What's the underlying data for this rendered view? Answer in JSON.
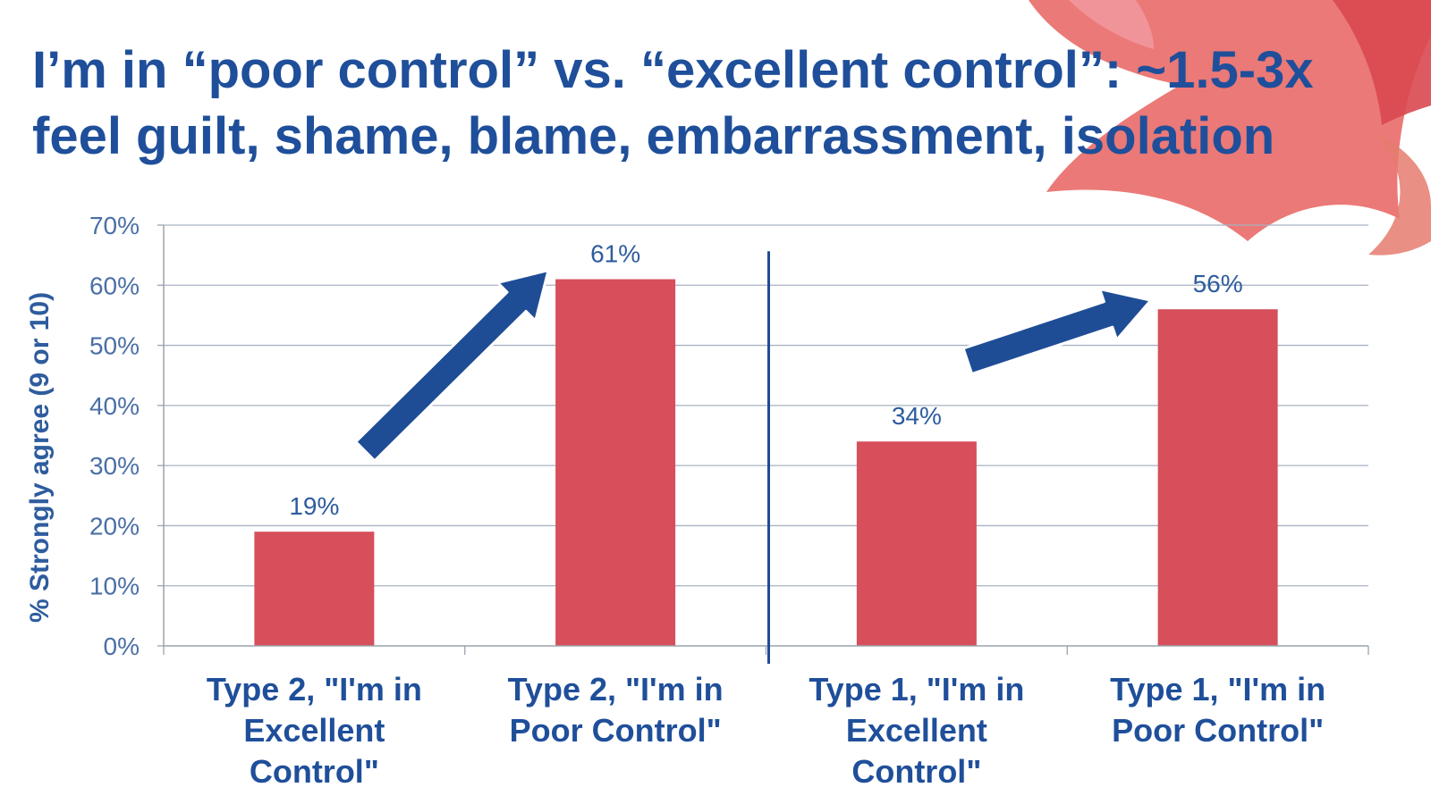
{
  "title_lines": [
    "I’m in “poor control” vs. “excellent control”: ~1.5-3x",
    "feel guilt, shame, blame, embarrassment, isolation"
  ],
  "colors": {
    "title": "#1f4f9a",
    "bar": "#d64f5b",
    "arrow": "#1e4d96",
    "axis": "#9aa3ad",
    "decor": "#e8625f"
  },
  "chart_data": {
    "type": "bar",
    "categories": [
      [
        "Type 2, \"I'm in",
        "Excellent",
        "Control\""
      ],
      [
        "Type 2, \"I'm in",
        "Poor Control\""
      ],
      [
        "Type 1, \"I'm in",
        "Excellent",
        "Control\""
      ],
      [
        "Type 1, \"I'm in",
        "Poor Control\""
      ]
    ],
    "values": [
      19,
      61,
      34,
      56
    ],
    "data_labels": [
      "19%",
      "61%",
      "34%",
      "56%"
    ],
    "ylabel": "% Strongly agree (9 or 10)",
    "ylim": [
      0,
      70
    ],
    "yticks": [
      0,
      10,
      20,
      30,
      40,
      50,
      60,
      70
    ],
    "ytick_labels": [
      "0%",
      "10%",
      "20%",
      "30%",
      "40%",
      "50%",
      "60%",
      "70%"
    ],
    "grid": true,
    "group_divider_after_category": 2,
    "arrows": [
      {
        "from_category": 0,
        "to_category": 1
      },
      {
        "from_category": 2,
        "to_category": 3
      }
    ]
  }
}
